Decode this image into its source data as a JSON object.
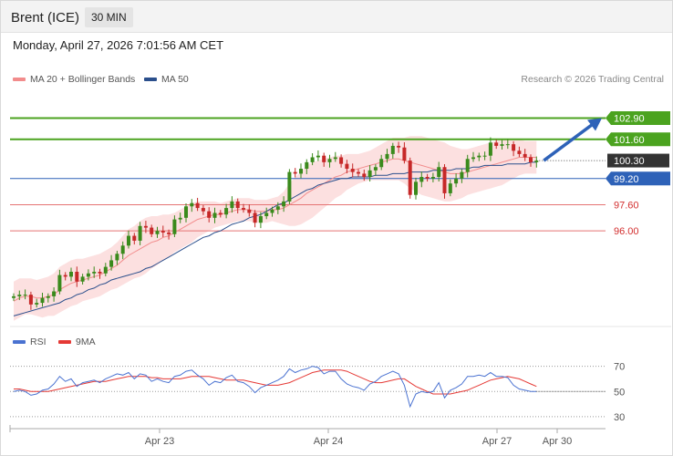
{
  "header": {
    "instrument": "Brent (ICE)",
    "timeframe": "30 MIN"
  },
  "datetime": "Monday, April 27, 2026 7:01:56 AM CET",
  "legend": {
    "ma20": "MA 20 + Bollinger Bands",
    "ma50": "MA 50",
    "credit": "Research © 2026 Trading Central"
  },
  "rsi_legend": {
    "rsi": "RSI",
    "ma9": "9MA"
  },
  "colors": {
    "candle_up": "#3a8a1c",
    "candle_down": "#c62828",
    "ma20": "#f28c8c",
    "bollinger_fill": "#fbd5d5",
    "ma50": "#2b4f8c",
    "resistance": "#4ba31f",
    "support": "#e57373",
    "pivot": "#2e62b8",
    "current": "#333333",
    "arrow": "#2e62b8",
    "rsi": "#4a72d1",
    "rsi_ma": "#e53935"
  },
  "chart_data": [
    {
      "type": "candlestick",
      "title": "Brent (ICE)",
      "timeframe": "30 MIN",
      "ylim": [
        90.6,
        105.1
      ],
      "x_ticks": [
        "Apr 23",
        "Apr 24",
        "Apr 27",
        "Apr 30"
      ],
      "levels": [
        {
          "label": "102.90",
          "value": 102.9,
          "kind": "resistance"
        },
        {
          "label": "101.60",
          "value": 101.6,
          "kind": "resistance"
        },
        {
          "label": "100.30",
          "value": 100.3,
          "kind": "current"
        },
        {
          "label": "99.20",
          "value": 99.2,
          "kind": "pivot"
        },
        {
          "label": "97.60",
          "value": 97.6,
          "kind": "support"
        },
        {
          "label": "96.00",
          "value": 96.0,
          "kind": "support"
        }
      ],
      "projection": {
        "from": 100.3,
        "to": 102.9
      },
      "closes": [
        92.0,
        92.1,
        92.1,
        91.5,
        91.6,
        91.9,
        92.0,
        92.3,
        93.3,
        93.2,
        93.5,
        92.9,
        93.2,
        93.4,
        93.5,
        93.4,
        93.8,
        94.2,
        94.6,
        95.1,
        95.7,
        95.4,
        96.3,
        96.2,
        95.8,
        96.0,
        95.9,
        95.8,
        96.7,
        96.8,
        97.5,
        97.7,
        97.4,
        97.2,
        96.8,
        97.1,
        97.0,
        97.4,
        97.8,
        97.4,
        97.3,
        97.1,
        96.5,
        96.9,
        97.1,
        97.3,
        97.5,
        97.8,
        99.6,
        99.5,
        99.8,
        100.2,
        100.5,
        100.6,
        100.2,
        100.4,
        100.5,
        100.1,
        99.8,
        99.6,
        99.5,
        99.3,
        99.7,
        99.9,
        100.4,
        100.7,
        101.2,
        101.1,
        100.3,
        98.2,
        99.0,
        99.3,
        99.2,
        99.3,
        99.9,
        98.3,
        98.9,
        99.2,
        99.6,
        100.4,
        100.5,
        100.6,
        100.6,
        101.4,
        101.2,
        101.3,
        101.3,
        100.9,
        100.7,
        100.5,
        100.2,
        100.3
      ],
      "opens": [
        91.9,
        92.0,
        92.1,
        92.1,
        91.5,
        91.6,
        91.9,
        92.0,
        92.3,
        93.3,
        93.2,
        93.5,
        92.9,
        93.2,
        93.4,
        93.5,
        93.4,
        93.8,
        94.2,
        94.6,
        95.1,
        95.7,
        95.4,
        96.3,
        96.2,
        95.8,
        96.0,
        95.9,
        95.8,
        96.7,
        96.8,
        97.5,
        97.7,
        97.4,
        97.2,
        96.8,
        97.1,
        97.0,
        97.4,
        97.8,
        97.4,
        97.3,
        97.1,
        96.5,
        96.9,
        97.1,
        97.3,
        97.5,
        97.8,
        99.6,
        99.5,
        99.8,
        100.2,
        100.5,
        100.6,
        100.2,
        100.4,
        100.5,
        100.1,
        99.8,
        99.6,
        99.5,
        99.3,
        99.7,
        99.9,
        100.4,
        100.7,
        101.2,
        101.1,
        100.3,
        98.2,
        99.0,
        99.3,
        99.2,
        99.3,
        99.9,
        98.3,
        98.9,
        99.2,
        99.6,
        100.4,
        100.5,
        100.6,
        100.6,
        101.4,
        101.2,
        101.3,
        101.3,
        100.9,
        100.7,
        100.5,
        100.2
      ],
      "ma20": [
        91.7,
        91.9,
        92.0,
        92.0,
        91.9,
        91.9,
        92.0,
        92.1,
        92.4,
        92.6,
        92.8,
        92.9,
        93.0,
        93.1,
        93.2,
        93.3,
        93.5,
        93.7,
        93.9,
        94.2,
        94.5,
        94.7,
        94.9,
        95.1,
        95.3,
        95.4,
        95.6,
        95.7,
        95.9,
        96.1,
        96.3,
        96.5,
        96.7,
        96.8,
        96.9,
        97.0,
        97.0,
        97.1,
        97.2,
        97.3,
        97.3,
        97.3,
        97.2,
        97.2,
        97.2,
        97.3,
        97.3,
        97.4,
        97.6,
        97.8,
        98.0,
        98.3,
        98.5,
        98.7,
        98.9,
        99.1,
        99.3,
        99.4,
        99.6,
        99.7,
        99.8,
        99.9,
        100.0,
        100.1,
        100.2,
        100.3,
        100.4,
        100.4,
        100.3,
        100.2,
        100.1,
        100.0,
        99.9,
        99.8,
        99.7,
        99.6,
        99.5,
        99.5,
        99.5,
        99.6,
        99.7,
        99.8,
        99.9,
        100.0,
        100.1,
        100.2,
        100.3,
        100.4,
        100.5,
        100.5,
        100.5,
        100.5
      ],
      "bb_width": [
        1.2,
        1.2,
        1.1,
        1.1,
        1.1,
        1.2,
        1.2,
        1.3,
        1.4,
        1.4,
        1.4,
        1.4,
        1.3,
        1.3,
        1.3,
        1.3,
        1.3,
        1.3,
        1.4,
        1.5,
        1.6,
        1.6,
        1.7,
        1.7,
        1.6,
        1.5,
        1.4,
        1.3,
        1.2,
        1.2,
        1.2,
        1.2,
        1.1,
        1.0,
        0.9,
        0.8,
        0.7,
        0.7,
        0.7,
        0.7,
        0.7,
        0.7,
        0.7,
        0.7,
        0.7,
        0.7,
        0.8,
        1.0,
        1.3,
        1.5,
        1.6,
        1.7,
        1.7,
        1.6,
        1.5,
        1.4,
        1.3,
        1.2,
        1.1,
        1.0,
        0.9,
        0.9,
        0.9,
        1.0,
        1.1,
        1.2,
        1.3,
        1.3,
        1.4,
        1.6,
        1.7,
        1.8,
        1.8,
        1.8,
        1.8,
        1.8,
        1.7,
        1.6,
        1.5,
        1.4,
        1.4,
        1.4,
        1.4,
        1.4,
        1.4,
        1.4,
        1.3,
        1.2,
        1.1,
        1.0,
        1.0,
        1.0
      ],
      "ma50": [
        90.8,
        90.9,
        91.0,
        91.1,
        91.2,
        91.3,
        91.4,
        91.5,
        91.6,
        91.8,
        91.9,
        92.1,
        92.2,
        92.4,
        92.5,
        92.7,
        92.8,
        93.0,
        93.1,
        93.2,
        93.3,
        93.4,
        93.5,
        93.7,
        93.8,
        94.0,
        94.2,
        94.4,
        94.6,
        94.8,
        95.0,
        95.2,
        95.4,
        95.6,
        95.7,
        95.9,
        96.0,
        96.2,
        96.4,
        96.5,
        96.6,
        96.8,
        96.9,
        97.0,
        97.2,
        97.4,
        97.6,
        97.7,
        97.9,
        98.1,
        98.3,
        98.5,
        98.6,
        98.8,
        98.9,
        99.0,
        99.1,
        99.2,
        99.2,
        99.3,
        99.3,
        99.3,
        99.3,
        99.4,
        99.4,
        99.4,
        99.5,
        99.5,
        99.5,
        99.6,
        99.6,
        99.6,
        99.6,
        99.7,
        99.7,
        99.7,
        99.7,
        99.8,
        99.8,
        99.8,
        99.9,
        99.9,
        100.0,
        100.0,
        100.0,
        100.0,
        100.1,
        100.1,
        100.1,
        100.1,
        100.2,
        100.2
      ]
    },
    {
      "type": "line",
      "title": "RSI",
      "ylim": [
        22,
        82
      ],
      "y_ticks": [
        30,
        50,
        70
      ],
      "series": [
        {
          "name": "RSI",
          "values": [
            50,
            51,
            50,
            47,
            48,
            51,
            52,
            56,
            62,
            58,
            60,
            54,
            57,
            58,
            59,
            57,
            60,
            62,
            64,
            63,
            65,
            60,
            64,
            63,
            58,
            60,
            58,
            57,
            62,
            63,
            66,
            67,
            63,
            60,
            55,
            58,
            57,
            61,
            63,
            58,
            57,
            54,
            49,
            53,
            55,
            57,
            59,
            62,
            68,
            65,
            67,
            68,
            70,
            69,
            64,
            66,
            66,
            60,
            56,
            54,
            53,
            51,
            56,
            58,
            62,
            64,
            66,
            64,
            55,
            38,
            48,
            50,
            49,
            50,
            57,
            45,
            51,
            53,
            56,
            62,
            62,
            63,
            62,
            65,
            62,
            62,
            61,
            55,
            52,
            51,
            50,
            50
          ]
        },
        {
          "name": "9MA",
          "values": [
            52,
            52,
            51,
            50,
            50,
            50,
            50,
            51,
            52,
            53,
            54,
            55,
            56,
            57,
            58,
            58,
            58,
            59,
            60,
            61,
            62,
            62,
            62,
            62,
            61,
            61,
            60,
            60,
            60,
            60,
            61,
            62,
            62,
            62,
            62,
            61,
            60,
            59,
            59,
            59,
            59,
            58,
            57,
            56,
            55,
            55,
            55,
            56,
            57,
            59,
            61,
            63,
            65,
            66,
            67,
            67,
            67,
            67,
            66,
            64,
            62,
            60,
            58,
            57,
            57,
            58,
            59,
            60,
            60,
            57,
            54,
            52,
            50,
            48,
            48,
            48,
            48,
            49,
            50,
            51,
            53,
            55,
            57,
            59,
            60,
            61,
            62,
            61,
            60,
            58,
            56,
            54
          ]
        }
      ]
    }
  ]
}
